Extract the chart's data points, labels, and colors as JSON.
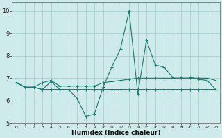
{
  "xlabel": "Humidex (Indice chaleur)",
  "x_values": [
    0,
    1,
    2,
    3,
    4,
    5,
    6,
    7,
    8,
    9,
    10,
    11,
    12,
    13,
    14,
    15,
    16,
    17,
    18,
    19,
    20,
    21,
    22,
    23
  ],
  "series1": [
    6.8,
    6.6,
    6.6,
    6.5,
    6.85,
    6.5,
    6.5,
    6.1,
    5.3,
    5.4,
    6.6,
    7.5,
    8.3,
    10.0,
    6.3,
    8.7,
    7.6,
    7.5,
    7.05,
    7.05,
    7.05,
    6.95,
    6.9,
    6.5
  ],
  "series2": [
    6.8,
    6.6,
    6.6,
    6.8,
    6.9,
    6.65,
    6.65,
    6.65,
    6.65,
    6.65,
    6.8,
    6.85,
    6.9,
    6.95,
    7.0,
    7.0,
    7.0,
    7.0,
    7.0,
    7.0,
    7.0,
    7.0,
    7.0,
    6.9
  ],
  "series3": [
    6.8,
    6.6,
    6.6,
    6.5,
    6.5,
    6.5,
    6.5,
    6.5,
    6.5,
    6.5,
    6.5,
    6.5,
    6.5,
    6.5,
    6.5,
    6.5,
    6.5,
    6.5,
    6.5,
    6.5,
    6.5,
    6.5,
    6.5,
    6.5
  ],
  "line_color": "#1a7a6e",
  "bg_color": "#ceeaea",
  "grid_color": "#aacece",
  "ylim": [
    5.0,
    10.4
  ],
  "xlim": [
    -0.5,
    23.5
  ],
  "yticks": [
    5,
    6,
    7,
    8,
    9,
    10
  ]
}
